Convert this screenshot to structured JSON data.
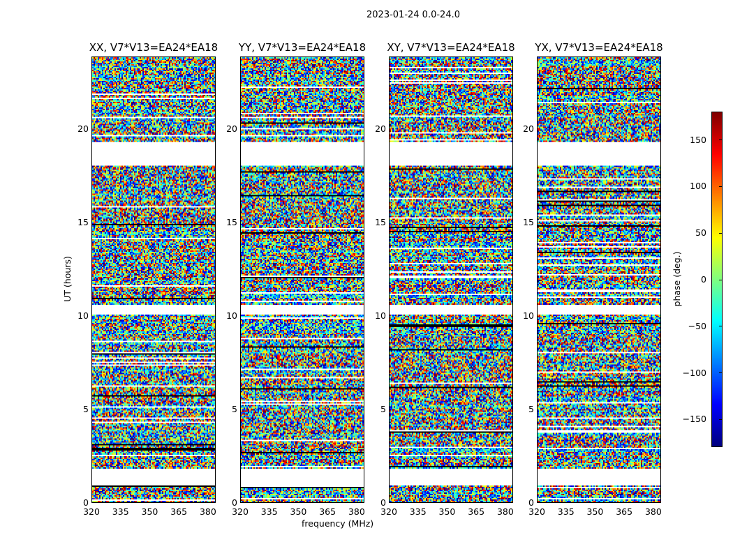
{
  "chart_data": {
    "type": "heatmap",
    "title": "2023-01-24 0.0-24.0",
    "xlabel": "frequency (MHz)",
    "ylabel": "UT (hours)",
    "xlim": [
      320,
      384
    ],
    "ylim": [
      0,
      23.9
    ],
    "xticks": [
      "320",
      "335",
      "350",
      "365",
      "380"
    ],
    "yticks": [
      "0",
      "5",
      "10",
      "15",
      "20"
    ],
    "panels": [
      {
        "title": "XX, V7*V13=EA24*EA18"
      },
      {
        "title": "YY, V7*V13=EA24*EA18"
      },
      {
        "title": "XY, V7*V13=EA24*EA18"
      },
      {
        "title": "YX, V7*V13=EA24*EA18"
      }
    ],
    "gaps_hours": [
      [
        0.86,
        1.8
      ],
      [
        10.1,
        10.6
      ],
      [
        18.05,
        19.35
      ]
    ],
    "colorbar": {
      "label": "phase (deg.)",
      "colormap": "jet",
      "range": [
        -180,
        180
      ],
      "ticks": [
        "150",
        "100",
        "50",
        "0",
        "−50",
        "−100",
        "−150"
      ],
      "tick_values": [
        150,
        100,
        50,
        0,
        -50,
        -100,
        -150
      ]
    }
  }
}
